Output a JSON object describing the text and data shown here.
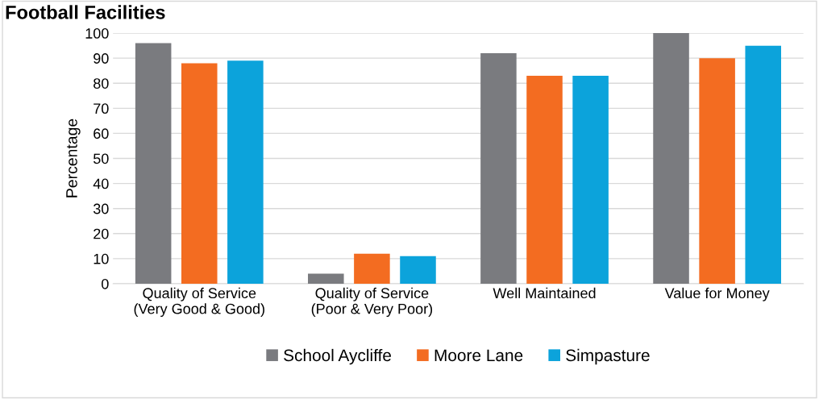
{
  "chart_data": {
    "type": "bar",
    "title": "Football Facilities",
    "ylabel": "Percentage",
    "categories": [
      "Quality of Service\n(Very Good & Good)",
      "Quality of Service\n(Poor & Very Poor)",
      "Well Maintained",
      "Value for Money"
    ],
    "series": [
      {
        "name": "School Aycliffe",
        "color": "#7a7b7f",
        "values": [
          96,
          4,
          92,
          100
        ]
      },
      {
        "name": "Moore Lane",
        "color": "#f36c21",
        "values": [
          88,
          12,
          83,
          90
        ]
      },
      {
        "name": "Simpasture",
        "color": "#0ca3db",
        "values": [
          89,
          11,
          83,
          95
        ]
      }
    ],
    "ylim": [
      0,
      100
    ],
    "yticks": [
      0,
      10,
      20,
      30,
      40,
      50,
      60,
      70,
      80,
      90,
      100
    ],
    "grid": "y",
    "legend": "bottom"
  }
}
